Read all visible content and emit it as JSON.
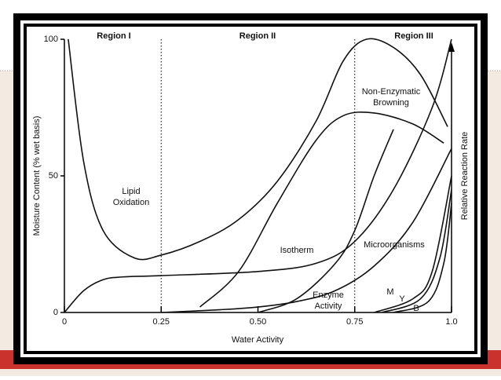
{
  "chart_data": {
    "type": "line",
    "x_label": "Water Activity",
    "y_label": "Moisture Content (% wet basis)",
    "y2_label": "Relative Reaction Rate",
    "regions": [
      "Region I",
      "Region II",
      "Region III"
    ],
    "region_lines": [
      0.25,
      0.75
    ],
    "xlim": [
      0,
      1
    ],
    "ylim": [
      0,
      100
    ],
    "xticks": [
      0,
      0.25,
      {
        "value": 0.5,
        "label": "0.50"
      },
      0.75,
      {
        "value": 1,
        "label": "1.0"
      }
    ],
    "yticks": [
      0,
      50,
      100
    ],
    "annotations": [
      [
        "Lipid",
        "Oxidation"
      ],
      [
        "Isotherm"
      ],
      [
        "Non-Enzymatic",
        "Browning"
      ],
      [
        "Microorganisms"
      ],
      [
        "Enzyme",
        "Activity"
      ],
      [
        "M"
      ],
      [
        "Y"
      ],
      [
        "B"
      ]
    ],
    "series": [
      {
        "color": "#111",
        "x": [
          0.01,
          0.05,
          0.1,
          0.18,
          0.25,
          0.35,
          0.45,
          0.55,
          0.65,
          0.72,
          0.78,
          0.85,
          0.92,
          0.99
        ],
        "values": [
          100,
          55,
          30,
          20,
          21,
          26,
          34,
          48,
          70,
          92,
          100,
          97,
          87,
          68
        ]
      },
      {
        "color": "#111",
        "x": [
          0,
          0.05,
          0.1,
          0.15,
          0.25,
          0.5,
          0.65,
          0.75,
          0.85,
          0.95,
          1.0
        ],
        "values": [
          0,
          8,
          12,
          13,
          13.5,
          15,
          18,
          26,
          45,
          75,
          100
        ]
      },
      {
        "color": "#111",
        "x": [
          0.35,
          0.45,
          0.55,
          0.65,
          0.72,
          0.8,
          0.9,
          0.98
        ],
        "values": [
          2,
          15,
          40,
          63,
          72,
          73,
          69,
          62
        ]
      },
      {
        "color": "#111",
        "x": [
          0.5,
          0.6,
          0.7,
          0.75,
          0.8,
          0.85
        ],
        "values": [
          0,
          5,
          18,
          30,
          50,
          67
        ]
      },
      {
        "color": "#111",
        "x": [
          0.25,
          0.4,
          0.5,
          0.6,
          0.7,
          0.8,
          0.9,
          1.0
        ],
        "values": [
          0,
          1,
          2,
          4,
          8,
          17,
          33,
          60
        ]
      },
      {
        "color": "#111",
        "x": [
          0.8,
          0.9,
          0.95,
          1.0
        ],
        "values": [
          0,
          5,
          15,
          50
        ]
      },
      {
        "color": "#111",
        "x": [
          0.82,
          0.92,
          0.97,
          1.0
        ],
        "values": [
          0,
          5,
          20,
          45
        ]
      },
      {
        "color": "#111",
        "x": [
          0.85,
          0.94,
          0.98,
          1.0
        ],
        "values": [
          0,
          4,
          18,
          40
        ]
      }
    ]
  }
}
